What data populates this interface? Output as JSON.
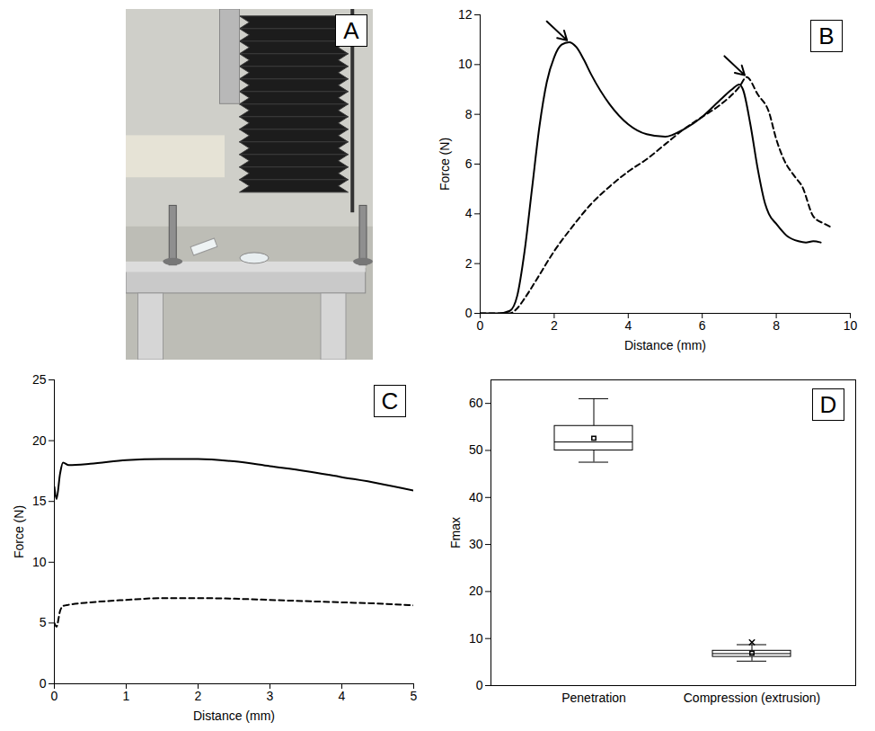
{
  "chart_data": [
    {
      "type": "photo",
      "panel": "A"
    },
    {
      "type": "line",
      "panel": "B",
      "x_label": "Distance (mm)",
      "y_label": "Force (N)",
      "xlim": [
        0,
        10
      ],
      "xticks": [
        0,
        2,
        4,
        6,
        8,
        10
      ],
      "ylim": [
        0,
        12
      ],
      "yticks": [
        0,
        2,
        4,
        6,
        8,
        10,
        12
      ],
      "series": [
        {
          "color": "#000000",
          "line_style": "solid",
          "marker": "arrow",
          "x": [
            0,
            0.5,
            0.8,
            1.0,
            1.2,
            1.4,
            1.6,
            1.8,
            2.0,
            2.2,
            2.4,
            2.6,
            2.8,
            3.0,
            3.5,
            4.0,
            4.5,
            5.0,
            5.5,
            6.0,
            6.5,
            6.8,
            7.0,
            7.1,
            7.3,
            7.5,
            7.7,
            7.8,
            8.0,
            8.3,
            8.6,
            8.8,
            9.0,
            9.2
          ],
          "values": [
            0,
            0,
            0.1,
            0.7,
            2.5,
            5,
            7.5,
            9.3,
            10.3,
            10.8,
            10.9,
            10.7,
            10.2,
            9.6,
            8.4,
            7.6,
            7.2,
            7.1,
            7.4,
            7.9,
            8.6,
            9.0,
            9.2,
            9.0,
            7.6,
            5.8,
            4.4,
            4.0,
            3.6,
            3.1,
            2.9,
            2.85,
            2.9,
            2.85
          ]
        },
        {
          "color": "#000000",
          "line_style": "dashed",
          "marker": "arrow",
          "x": [
            0,
            0.8,
            1.0,
            1.2,
            1.5,
            2.0,
            2.5,
            3.0,
            3.5,
            4.0,
            4.5,
            5.0,
            5.5,
            6.0,
            6.5,
            7.0,
            7.2,
            7.5,
            7.8,
            8.0,
            8.2,
            8.5,
            8.7,
            9.0,
            9.3,
            9.5
          ],
          "values": [
            0,
            0,
            0.2,
            0.6,
            1.3,
            2.5,
            3.5,
            4.4,
            5.1,
            5.7,
            6.2,
            6.8,
            7.4,
            7.9,
            8.4,
            9.1,
            9.5,
            8.8,
            8.1,
            7.0,
            6.2,
            5.5,
            5.1,
            3.9,
            3.6,
            3.45
          ]
        }
      ]
    },
    {
      "type": "line",
      "panel": "C",
      "x_label": "Distance (mm)",
      "y_label": "Force (N)",
      "xlim": [
        0,
        5
      ],
      "xticks": [
        0,
        1,
        2,
        3,
        4,
        5
      ],
      "ylim": [
        0,
        25
      ],
      "yticks": [
        0,
        5,
        10,
        15,
        20,
        25
      ],
      "series": [
        {
          "color": "#000000",
          "line_style": "solid",
          "x": [
            0,
            0.03,
            0.08,
            0.12,
            0.2,
            0.5,
            1,
            1.5,
            2,
            2.5,
            3,
            3.5,
            4,
            4.5,
            5
          ],
          "values": [
            16.2,
            15.2,
            17.3,
            18.2,
            18.0,
            18.1,
            18.4,
            18.5,
            18.5,
            18.3,
            17.9,
            17.5,
            17.0,
            16.5,
            15.9
          ]
        },
        {
          "color": "#000000",
          "line_style": "dashed",
          "x": [
            0,
            0.03,
            0.08,
            0.12,
            0.2,
            0.5,
            1,
            1.5,
            2,
            2.5,
            3,
            3.5,
            4,
            4.5,
            5
          ],
          "values": [
            5.0,
            4.7,
            6.0,
            6.4,
            6.5,
            6.7,
            6.9,
            7.05,
            7.05,
            7.0,
            6.9,
            6.8,
            6.7,
            6.6,
            6.45
          ]
        }
      ]
    },
    {
      "type": "box",
      "panel": "D",
      "y_label": "Fmax",
      "color": "#000000",
      "marker": "square",
      "categories": [
        "Penetration",
        "Compression (extrusion)"
      ],
      "min": [
        47.5,
        5.2
      ],
      "q1": [
        50.0,
        6.1
      ],
      "median": [
        51.8,
        6.8
      ],
      "q3": [
        55.2,
        7.4
      ],
      "max": [
        61.0,
        8.7
      ],
      "mean": [
        52.6,
        6.9
      ],
      "outliers": [
        [],
        [
          9.2
        ]
      ],
      "ylim": [
        0,
        65
      ],
      "yticks": [
        0,
        10,
        20,
        30,
        40,
        50,
        60
      ]
    }
  ]
}
